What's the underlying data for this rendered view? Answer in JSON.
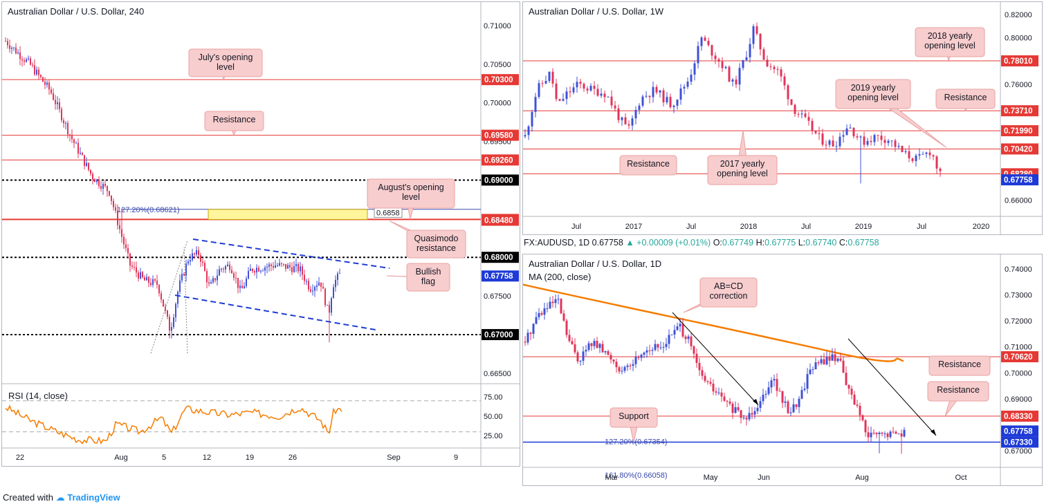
{
  "footer": {
    "created_with": "Created with",
    "brand": "TradingView"
  },
  "daily_header": {
    "symbol": "FX:AUDUSD, 1D",
    "last": "0.67758",
    "change": "+0.00009 (+0.01%)",
    "o_label": "O:",
    "o": "0.67749",
    "h_label": "H:",
    "h": "0.67775",
    "l_label": "L:",
    "l": "0.67740",
    "c_label": "C:",
    "c": "0.67758"
  },
  "colors": {
    "bull": "#3f51d6",
    "bear": "#e0345a",
    "level": "#e53935",
    "rsi": "#f57c00",
    "ma": "#f57c00",
    "blue_line": "#1e3ad6",
    "callout_bg": "#f8cdcd",
    "callout_border": "#e8a1a1"
  },
  "chart_data": [
    {
      "id": "h4",
      "type": "candlestick",
      "title": "Australian Dollar / U.S. Dollar, 240",
      "yticks": [
        "0.71000",
        "0.70500",
        "0.70000",
        "0.69500",
        "0.67500",
        "0.66500"
      ],
      "ylim": [
        0.664,
        0.7125
      ],
      "xticks": [
        "22",
        "Aug",
        "5",
        "12",
        "19",
        "26",
        "Sep",
        "9"
      ],
      "price_labels": [
        {
          "text": "0.70300",
          "value": 0.703,
          "bg": "#e53935"
        },
        {
          "text": "0.69580",
          "value": 0.6958,
          "bg": "#e53935"
        },
        {
          "text": "0.69260",
          "value": 0.6926,
          "bg": "#e53935"
        },
        {
          "text": "0.69000",
          "value": 0.69,
          "bg": "#000000"
        },
        {
          "text": "0.68490",
          "value": 0.6849,
          "bg": "#e53935"
        },
        {
          "text": "0.68480",
          "value": 0.6848,
          "bg": "#e53935"
        },
        {
          "text": "0.68000",
          "value": 0.68,
          "bg": "#000000"
        },
        {
          "text": "0.67758",
          "value": 0.67758,
          "bg": "#1e3ad6"
        },
        {
          "text": "0.67000",
          "value": 0.67,
          "bg": "#000000"
        }
      ],
      "fib_label": "127.20%(0.68621)",
      "zone_value_label": "0.6858",
      "callouts": [
        "July's opening level",
        "Resistance",
        "August's opening level",
        "Quasimodo resistance",
        "Bullish flag"
      ]
    },
    {
      "id": "rsi",
      "type": "line",
      "title": "RSI (14, close)",
      "yticks": [
        "75.00",
        "50.00",
        "25.00"
      ],
      "ylim": [
        10,
        85
      ],
      "levels": [
        70,
        30
      ]
    },
    {
      "id": "weekly",
      "type": "candlestick",
      "title": "Australian Dollar / U.S. Dollar, 1W",
      "yticks": [
        "0.82000",
        "0.80000",
        "0.76000",
        "0.66000"
      ],
      "ylim": [
        0.6425,
        0.826
      ],
      "xticks": [
        "Jul",
        "2017",
        "Jul",
        "2018",
        "Jul",
        "2019",
        "Jul",
        "2020"
      ],
      "price_labels": [
        {
          "text": "0.78010",
          "value": 0.7801,
          "bg": "#e53935"
        },
        {
          "text": "0.73710",
          "value": 0.7371,
          "bg": "#e53935"
        },
        {
          "text": "0.71990",
          "value": 0.7199,
          "bg": "#e53935"
        },
        {
          "text": "0.70420",
          "value": 0.7042,
          "bg": "#e53935"
        },
        {
          "text": "0.68280",
          "value": 0.6828,
          "bg": "#e53935"
        },
        {
          "text": "0.67758",
          "value": 0.67758,
          "bg": "#1e3ad6"
        }
      ],
      "callouts": [
        "2018 yearly opening level",
        "2019 yearly opening level",
        "Resistance",
        "Resistance",
        "2017 yearly opening level"
      ]
    },
    {
      "id": "daily",
      "type": "candlestick",
      "title": "Australian Dollar / U.S. Dollar, 1D",
      "ma_label": "MA (200, close)",
      "yticks": [
        "0.74000",
        "0.73000",
        "0.72000",
        "0.71000",
        "0.70000",
        "0.69000",
        "0.67000"
      ],
      "ylim": [
        0.6625,
        0.7435
      ],
      "xticks": [
        "Mar",
        "May",
        "Jun",
        "Aug",
        "Oct"
      ],
      "price_labels": [
        {
          "text": "0.70620",
          "value": 0.7062,
          "bg": "#e53935"
        },
        {
          "text": "0.68330",
          "value": 0.6833,
          "bg": "#e53935"
        },
        {
          "text": "0.67758",
          "value": 0.67758,
          "bg": "#1e3ad6"
        },
        {
          "text": "0.67330",
          "value": 0.6733,
          "bg": "#1e3ad6"
        }
      ],
      "fib_labels": [
        "127.20%(0.67354)",
        "161.80%(0.66058)"
      ],
      "callouts": [
        "AB=CD correction",
        "Resistance",
        "Resistance",
        "Support"
      ]
    }
  ]
}
